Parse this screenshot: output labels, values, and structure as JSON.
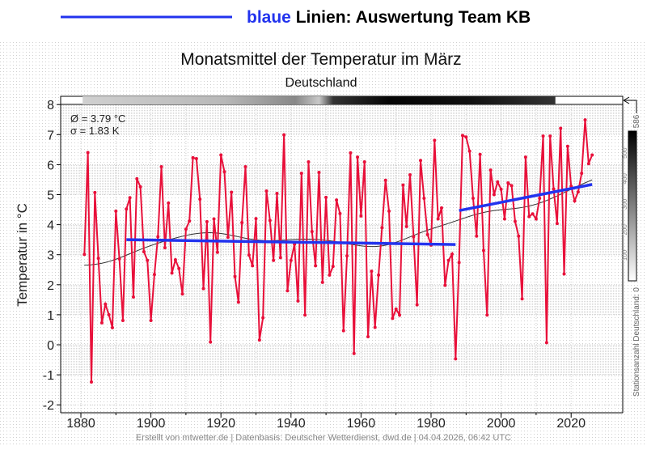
{
  "legend": {
    "label_colored": "blaue",
    "label_rest": " Linien: Auswertung Team KB",
    "line_color": "#2233ee"
  },
  "chart_data": {
    "type": "line",
    "title": "Monatsmittel der Temperatur im März",
    "subtitle": "Deutschland",
    "ylabel": "Temperatur in °C",
    "xlabel": "",
    "xlim": [
      1876,
      2032
    ],
    "ylim": [
      -2,
      8
    ],
    "x_ticks": [
      "1880",
      "1900",
      "1920",
      "1940",
      "1960",
      "1980",
      "2000",
      "2020"
    ],
    "y_ticks": [
      "-2",
      "-1",
      "0",
      "1",
      "2",
      "3",
      "4",
      "5",
      "6",
      "7",
      "8"
    ],
    "grid": true,
    "stats": {
      "mean": "Ø = 3.79 °C",
      "sigma": "σ = 1.83 K"
    },
    "series": [
      {
        "color": "#e8103a",
        "x_start": 1881,
        "values": [
          3.01,
          6.4,
          -1.24,
          5.07,
          2.88,
          0.73,
          1.35,
          1.0,
          0.57,
          4.45,
          2.86,
          0.81,
          4.52,
          4.9,
          1.59,
          5.53,
          5.26,
          3.1,
          2.81,
          0.81,
          2.34,
          3.6,
          5.93,
          3.23,
          4.72,
          2.39,
          2.83,
          2.54,
          1.69,
          3.85,
          4.12,
          6.23,
          6.2,
          4.85,
          1.87,
          4.1,
          0.09,
          4.19,
          3.08,
          6.32,
          5.76,
          3.58,
          5.08,
          2.27,
          1.42,
          4.07,
          5.93,
          2.99,
          2.63,
          4.2,
          0.16,
          0.9,
          5.12,
          4.14,
          2.81,
          5.04,
          2.9,
          6.99,
          1.8,
          2.81,
          3.35,
          1.46,
          5.71,
          0.99,
          6.09,
          3.77,
          2.63,
          5.74,
          2.08,
          4.91,
          2.32,
          2.61,
          4.82,
          4.37,
          0.47,
          2.96,
          6.39,
          -0.29,
          6.25,
          4.29,
          6.09,
          0.27,
          2.45,
          0.58,
          2.32,
          3.9,
          5.48,
          4.45,
          0.88,
          1.19,
          0.99,
          5.32,
          3.94,
          5.66,
          3.6,
          1.33,
          6.14,
          4.88,
          3.67,
          3.32,
          6.81,
          4.19,
          4.56,
          1.98,
          2.81,
          3.02,
          -0.47,
          2.74,
          6.97,
          6.92,
          6.45,
          4.88,
          3.62,
          6.34,
          3.14,
          0.99,
          5.82,
          5.0,
          5.42,
          5.18,
          4.19,
          5.39,
          5.3,
          4.11,
          3.62,
          1.53,
          6.25,
          4.27,
          4.36,
          4.19,
          4.88,
          6.95,
          0.07,
          6.95,
          5.19,
          4.04,
          7.21,
          2.36,
          6.61,
          5.28,
          4.79,
          5.09,
          5.71,
          7.49,
          6.03,
          6.32
        ]
      }
    ],
    "trend_lines": [
      {
        "color": "#2233ee",
        "x": [
          1893,
          1987
        ],
        "y": [
          3.5,
          3.34
        ]
      },
      {
        "color": "#2233ee",
        "x": [
          1988,
          2026
        ],
        "y": [
          4.47,
          5.34
        ]
      }
    ],
    "station_count": {
      "label": "Stationsanzahl Deutschland: 0",
      "max_label": "586",
      "ticks": [
        "100",
        "200",
        "300",
        "400",
        "500"
      ]
    }
  },
  "footer": "Erstellt von mtwetter.de | Datenbasis: Deutscher Wetterdienst, dwd.de | 04.04.2026, 06:42 UTC"
}
